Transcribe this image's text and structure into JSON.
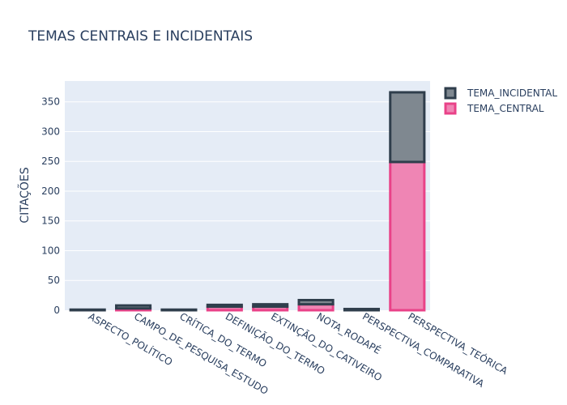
{
  "chart_data": {
    "type": "bar",
    "stacked": true,
    "title": "TEMAS CENTRAIS E INCIDENTAIS",
    "xlabel": "",
    "ylabel": "CITAÇÕES",
    "ylim": [
      0,
      385
    ],
    "yticks": [
      0,
      50,
      100,
      150,
      200,
      250,
      300,
      350
    ],
    "grid": true,
    "legend_position": "top-right",
    "categories": [
      "ASPECTO_POLÍTICO",
      "CAMPO_DE_PESQUISA_ESTUDO",
      "CRÍTICA_DO_TERMO",
      "DEFINIÇÃO_DO_TERMO",
      "EXTINÇÃO_DO_CATIVEIRO",
      "NOTA_RODAPÉ",
      "PERSPECTIVA_COMPARATIVA",
      "PERSPECTIVA_TEÓRICA"
    ],
    "series": [
      {
        "name": "TEMA_CENTRAL",
        "fill": "#ef85b4",
        "stroke": "#e94288",
        "values": [
          0,
          3,
          0,
          6,
          6,
          10,
          0,
          249
        ]
      },
      {
        "name": "TEMA_INCIDENTAL",
        "fill": "#7f8890",
        "stroke": "#2f3e4c",
        "values": [
          1,
          5,
          1,
          3,
          4,
          7,
          2,
          117
        ]
      }
    ],
    "legend_order": [
      "TEMA_INCIDENTAL",
      "TEMA_CENTRAL"
    ],
    "colors": {
      "plot_bg": "#e5ecf6",
      "grid": "#ffffff",
      "text": "#2a3f5f"
    }
  }
}
